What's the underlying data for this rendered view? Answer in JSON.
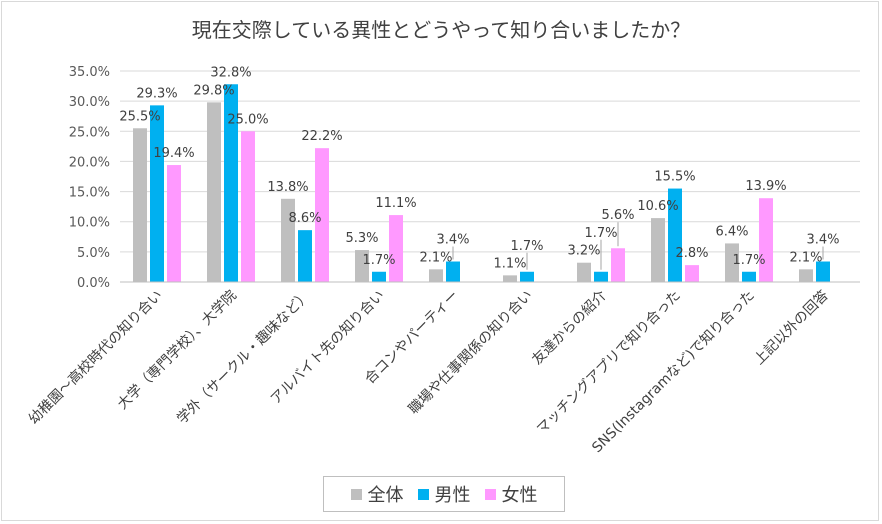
{
  "chart_data": {
    "type": "bar",
    "title": "現在交際している異性とどうやって知り合いましたか？",
    "categories": [
      "幼稚園～高校時代の知り合い",
      "大学（専門学校）、大学院",
      "学外（サークル・趣味など）",
      "アルバイト先の知り合い",
      "合コンやパーティー",
      "職場や仕事関係の知り合い",
      "友達からの紹介",
      "マッチングアプリで知り合った",
      "SNS(Instagramなど)で知り合った",
      "上記以外の回答"
    ],
    "series": [
      {
        "name": "全体",
        "color": "#bfbfbf",
        "values": [
          25.5,
          29.8,
          13.8,
          5.3,
          2.1,
          1.1,
          3.2,
          10.6,
          6.4,
          2.1
        ]
      },
      {
        "name": "男性",
        "color": "#00b0f0",
        "values": [
          29.3,
          32.8,
          8.6,
          1.7,
          3.4,
          1.7,
          1.7,
          15.5,
          1.7,
          3.4
        ]
      },
      {
        "name": "女性",
        "color": "#ff99ff",
        "values": [
          19.4,
          25.0,
          22.2,
          11.1,
          null,
          null,
          5.6,
          2.8,
          13.9,
          null
        ]
      }
    ],
    "ylim": [
      0,
      35
    ],
    "yticks": [
      "0.0%",
      "5.0%",
      "10.0%",
      "15.0%",
      "20.0%",
      "25.0%",
      "30.0%",
      "35.0%"
    ],
    "grid": true,
    "legend": "bottom",
    "xlabel": "",
    "ylabel": ""
  }
}
